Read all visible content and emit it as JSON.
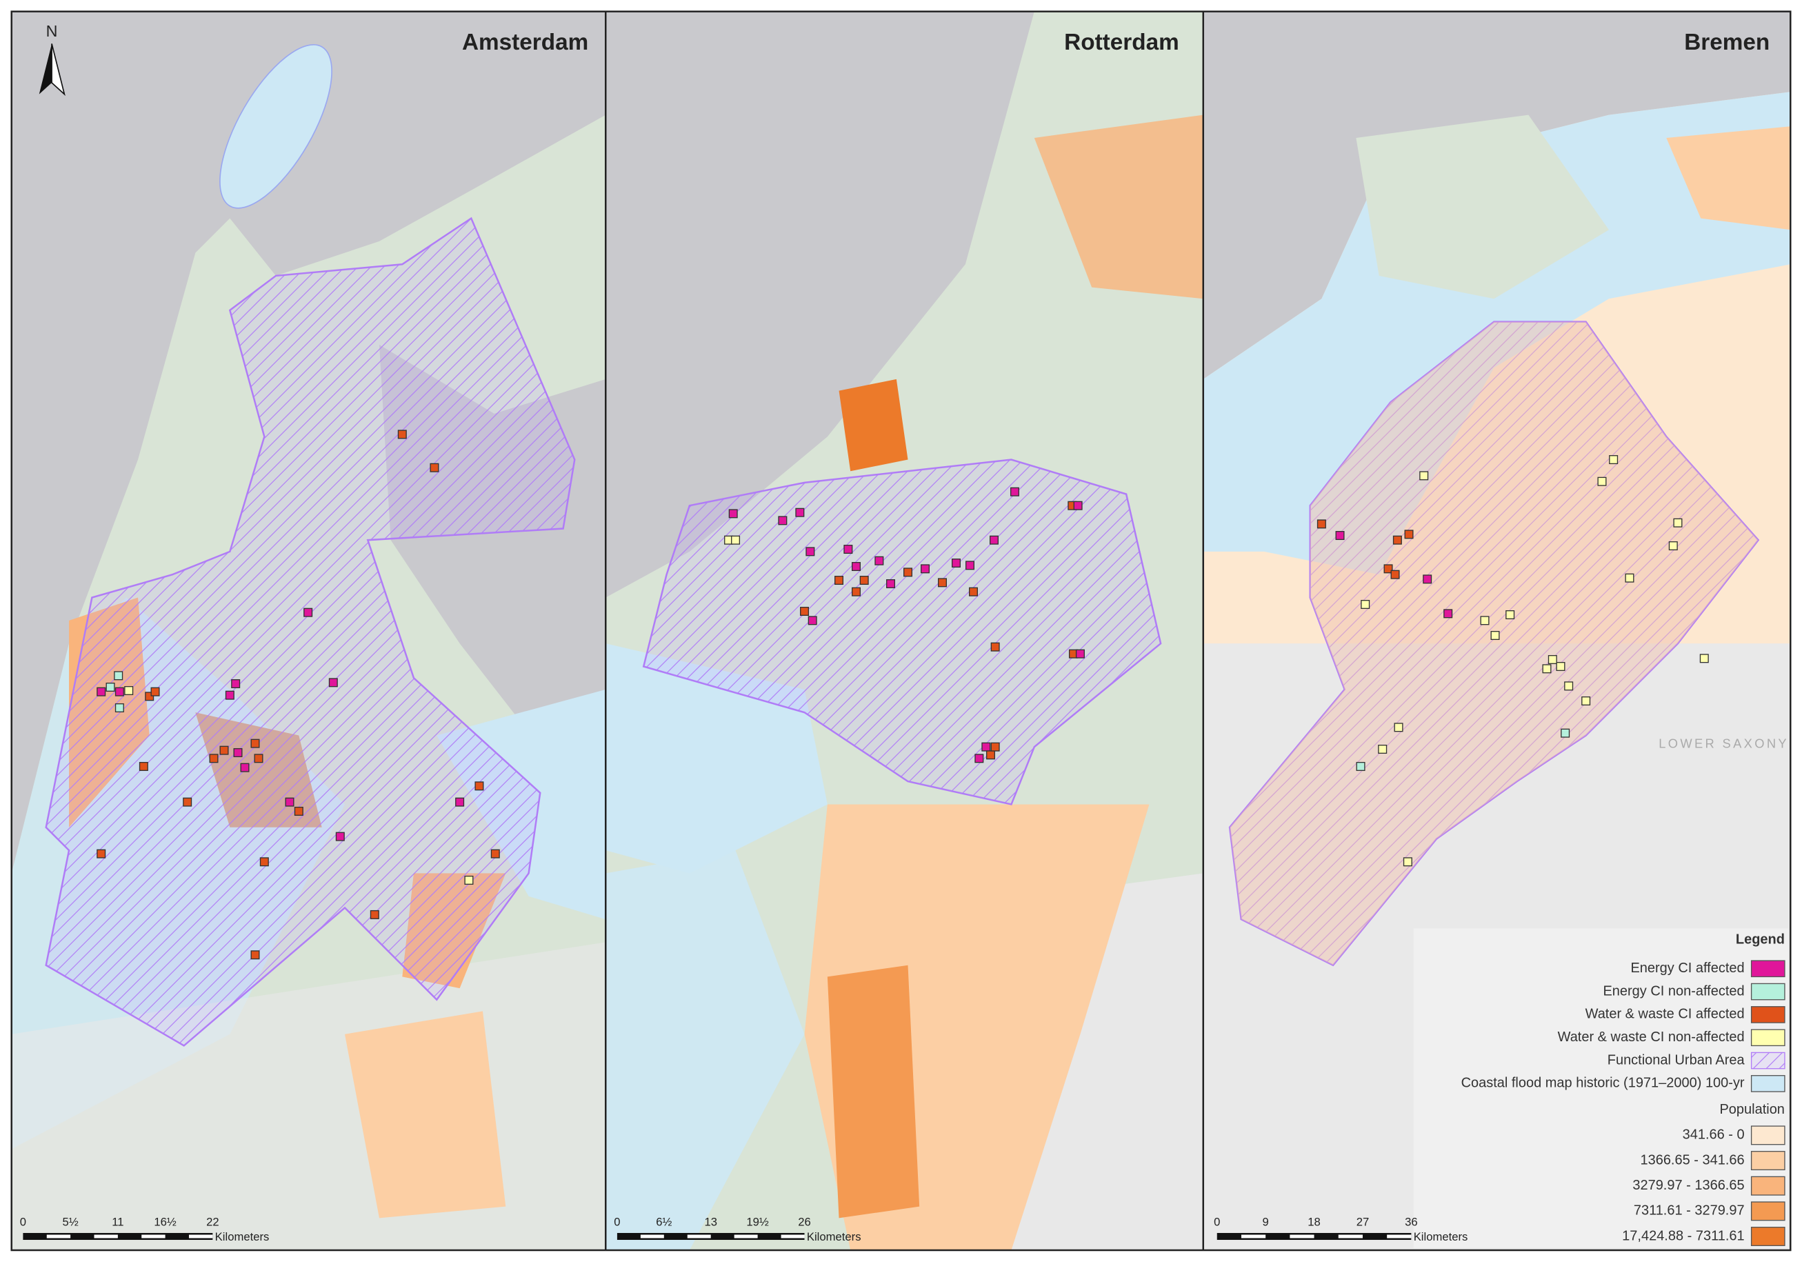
{
  "north_arrow": "N",
  "panels": [
    {
      "title": "Amsterdam",
      "scale_bar": {
        "ticks": [
          "0",
          "5½",
          "11",
          "16½",
          "22"
        ],
        "unit": "Kilometers"
      }
    },
    {
      "title": "Rotterdam",
      "scale_bar": {
        "ticks": [
          "0",
          "6½",
          "13",
          "19½",
          "26"
        ],
        "unit": "Kilometers"
      }
    },
    {
      "title": "Bremen",
      "scale_bar": {
        "ticks": [
          "0",
          "9",
          "18",
          "27",
          "36"
        ],
        "unit": "Kilometers"
      }
    }
  ],
  "place_labels": [
    "LOWER SAXONY"
  ],
  "legend": {
    "title": "Legend",
    "items": [
      {
        "label": "Energy CI affected",
        "color": "#e0169a"
      },
      {
        "label": "Energy CI non-affected",
        "color": "#b5f0dc"
      },
      {
        "label": "Water & waste CI affected",
        "color": "#e0521a"
      },
      {
        "label": "Water & waste CI non-affected",
        "color": "#ffffb0"
      },
      {
        "label": "Functional Urban Area",
        "color": "#b07cf7"
      },
      {
        "label": "Coastal flood map historic (1971–2000) 100-yr",
        "color": "#cde8f5"
      }
    ],
    "population": {
      "title": "Population",
      "classes": [
        {
          "label": "341.66 - 0",
          "color": "#fde8d0"
        },
        {
          "label": "1366.65 - 341.66",
          "color": "#fccfa4"
        },
        {
          "label": "3279.97 - 1366.65",
          "color": "#f9b47c"
        },
        {
          "label": "7311.61 - 3279.97",
          "color": "#f49a52"
        },
        {
          "label": "17,424.88 - 7311.61",
          "color": "#ec7a2a"
        }
      ]
    }
  }
}
